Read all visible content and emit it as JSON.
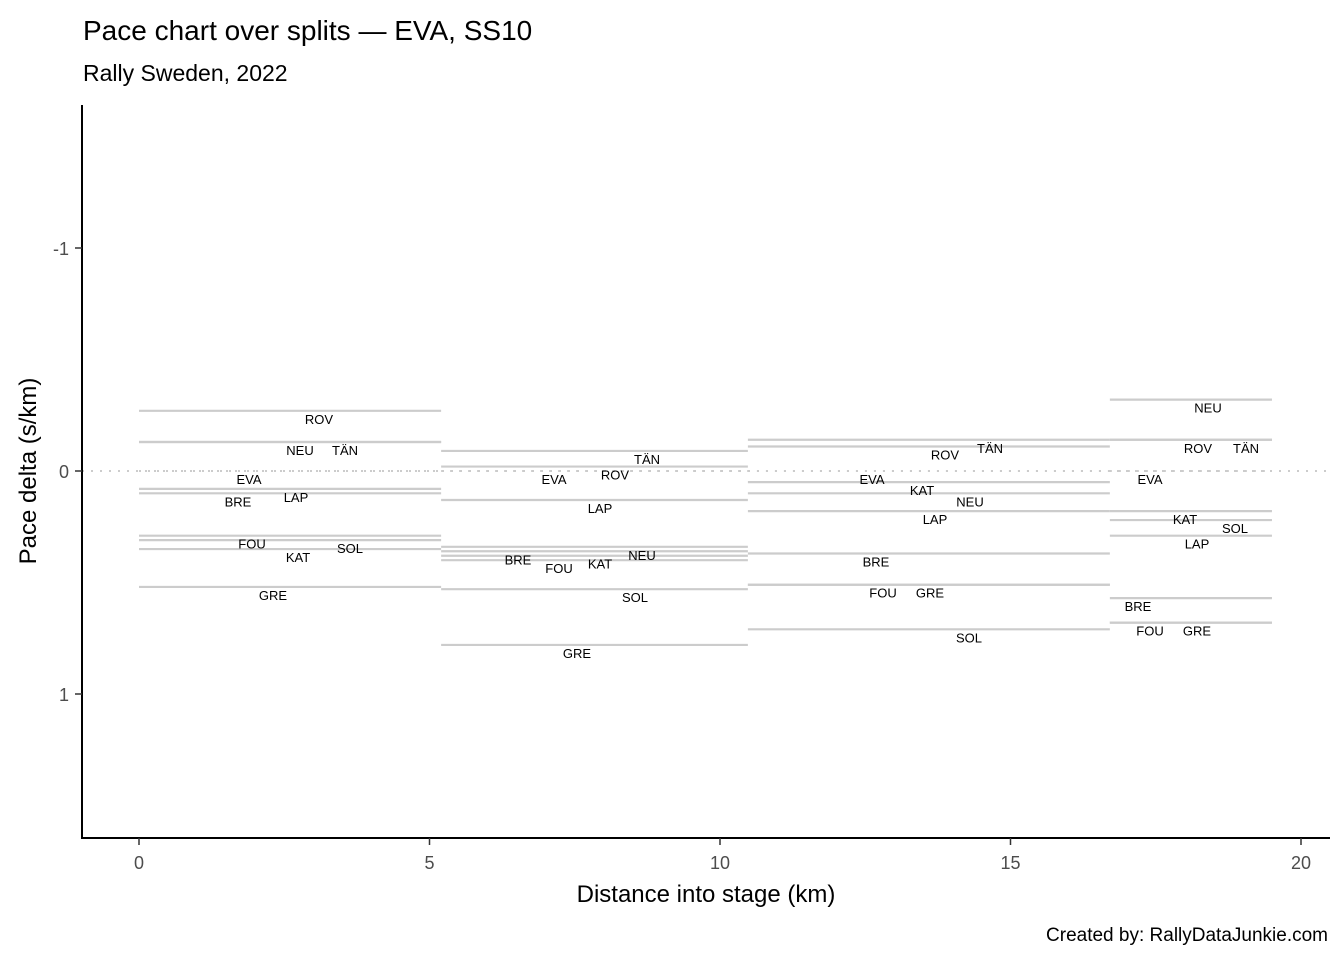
{
  "chart_data": {
    "type": "line",
    "title": "Pace chart over splits — EVA, SS10",
    "subtitle": "Rally Sweden, 2022",
    "xlabel": "Distance into stage (km)",
    "ylabel": "Pace delta (s/km)",
    "caption": "Created by: RallyDataJunkie.com",
    "xlim": [
      -0.98,
      20.5
    ],
    "ylim": [
      -1.64,
      1.65
    ],
    "y_reversed": true,
    "x_ticks": [
      0,
      5,
      10,
      15,
      20
    ],
    "y_ticks": [
      -1,
      0,
      1
    ],
    "reference_line": 0,
    "grid": false,
    "line_color": "#cccccc",
    "splits": [
      {
        "start": 0,
        "end": 5.2,
        "values": {
          "ROV": -0.27,
          "NEU": -0.13,
          "TÄN": -0.13,
          "EVA": 0,
          "LAP": 0.08,
          "BRE": 0.1,
          "FOU": 0.29,
          "SOL": 0.31,
          "KAT": 0.35,
          "GRE": 0.52
        }
      },
      {
        "start": 5.2,
        "end": 10.48,
        "values": {
          "TÄN": -0.09,
          "ROV": -0.02,
          "EVA": 0,
          "LAP": 0.13,
          "NEU": 0.34,
          "BRE": 0.36,
          "KAT": 0.38,
          "FOU": 0.4,
          "SOL": 0.53,
          "GRE": 0.78
        }
      },
      {
        "start": 10.48,
        "end": 16.71,
        "values": {
          "TÄN": -0.14,
          "ROV": -0.11,
          "EVA": 0,
          "KAT": 0.05,
          "NEU": 0.1,
          "LAP": 0.18,
          "BRE": 0.37,
          "FOU": 0.51,
          "GRE": 0.51,
          "SOL": 0.71
        }
      },
      {
        "start": 16.71,
        "end": 19.5,
        "values": {
          "NEU": -0.32,
          "ROV": -0.14,
          "TÄN": -0.14,
          "EVA": 0,
          "KAT": 0.18,
          "SOL": 0.22,
          "LAP": 0.29,
          "BRE": 0.57,
          "FOU": 0.68,
          "GRE": 0.68
        }
      }
    ]
  }
}
